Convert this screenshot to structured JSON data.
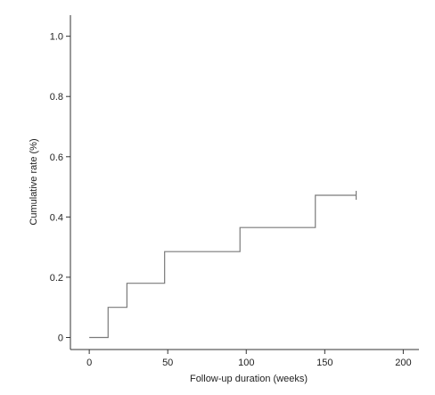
{
  "chart_data": {
    "type": "line",
    "step": true,
    "xlabel": "Follow-up duration (weeks)",
    "ylabel": "Cumulative rate (%)",
    "xlim": [
      -12,
      210
    ],
    "ylim": [
      -0.04,
      1.07
    ],
    "xticks": [
      0,
      50,
      100,
      150,
      200
    ],
    "yticks": [
      0,
      0.2,
      0.4,
      0.6,
      0.8,
      1.0
    ],
    "xtick_labels": [
      "0",
      "50",
      "100",
      "150",
      "200"
    ],
    "ytick_labels": [
      "0",
      "0.2",
      "0.4",
      "0.6",
      "0.8",
      "1.0"
    ],
    "grid": false,
    "series": [
      {
        "x": [
          0,
          12,
          24,
          48,
          96,
          144,
          170
        ],
        "y": [
          0,
          0.1,
          0.18,
          0.285,
          0.365,
          0.472,
          0.472
        ]
      }
    ],
    "censor": [
      {
        "x": 170,
        "y": 0.472
      }
    ],
    "colors": {
      "line": "#7a7a7a",
      "axis": "#333333"
    }
  }
}
